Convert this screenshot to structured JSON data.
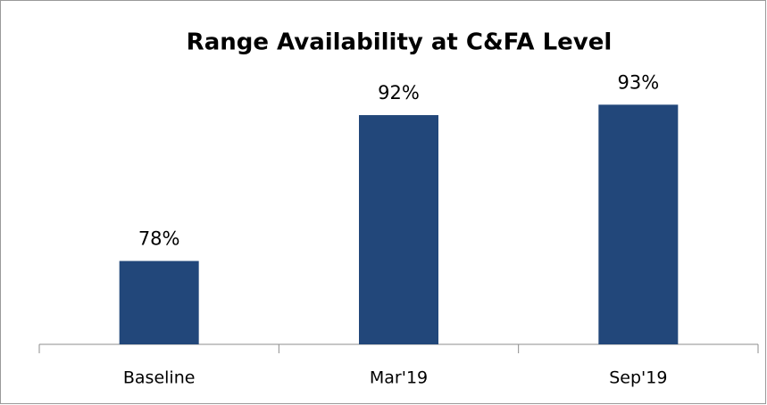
{
  "chart_data": {
    "type": "bar",
    "title": "Range Availability at C&FA Level",
    "categories": [
      "Baseline",
      "Mar'19",
      "Sep'19"
    ],
    "values": [
      78,
      92,
      93
    ],
    "value_labels": [
      "78%",
      "92%",
      "93%"
    ],
    "color": "#22477a",
    "ylim": [
      70,
      95
    ]
  }
}
